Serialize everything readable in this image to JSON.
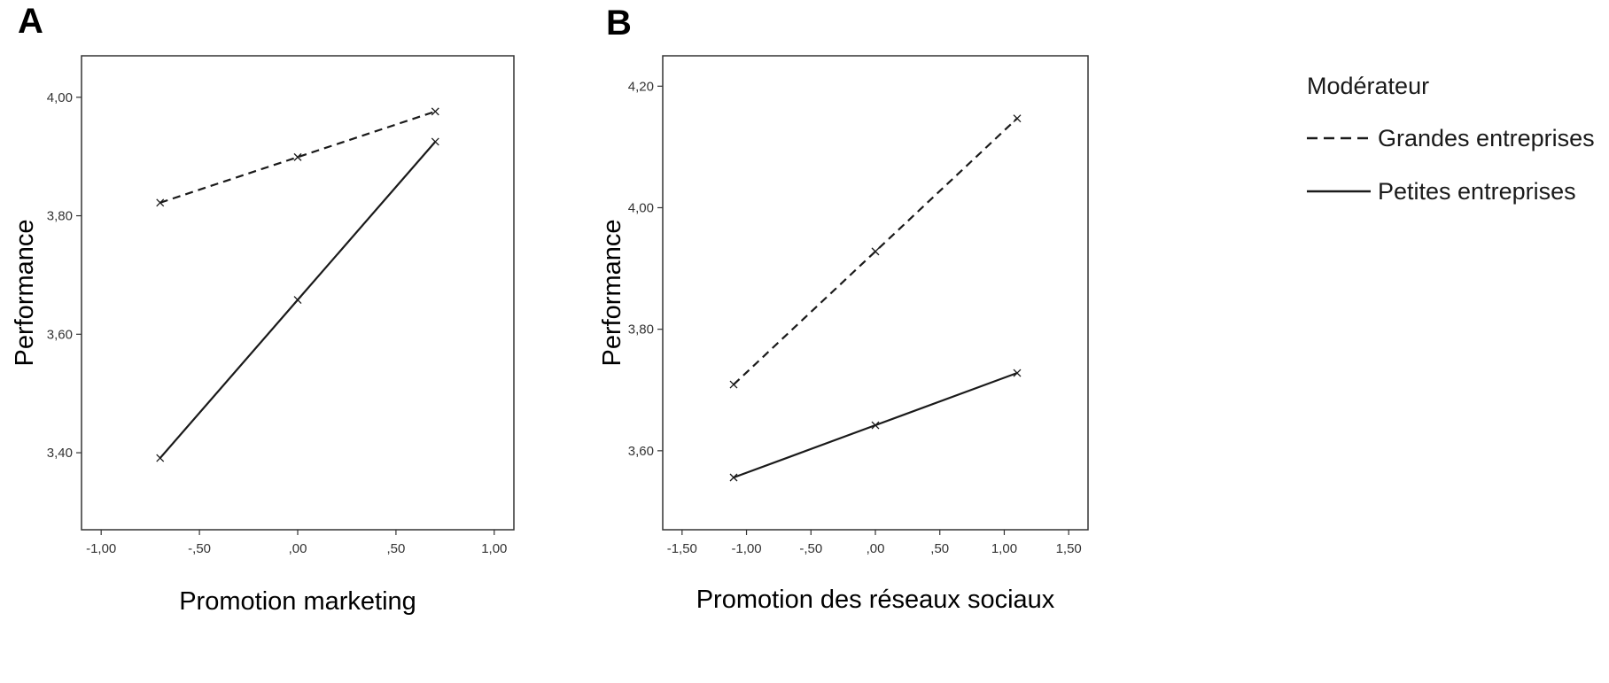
{
  "chart_data": [
    {
      "type": "line",
      "panel": "A",
      "xlabel": "Promotion marketing",
      "ylabel": "Performance",
      "xlim": [
        -1.1,
        1.1
      ],
      "ylim": [
        3.27,
        4.07
      ],
      "xticks": [
        -1.0,
        -0.5,
        0.0,
        0.5,
        1.0
      ],
      "xtick_labels": [
        "-1,00",
        "-,50",
        ",00",
        ",50",
        "1,00"
      ],
      "yticks": [
        3.4,
        3.6,
        3.8,
        4.0
      ],
      "ytick_labels": [
        "3,40",
        "3,60",
        "3,80",
        "4,00"
      ],
      "series": [
        {
          "name": "Grandes entreprises",
          "style": "dashed",
          "x": [
            -0.7,
            0.0,
            0.7
          ],
          "y": [
            3.822,
            3.899,
            3.976
          ]
        },
        {
          "name": "Petites entreprises",
          "style": "solid",
          "x": [
            -0.7,
            0.0,
            0.7
          ],
          "y": [
            3.391,
            3.658,
            3.925
          ]
        }
      ]
    },
    {
      "type": "line",
      "panel": "B",
      "xlabel": "Promotion des réseaux sociaux",
      "ylabel": "Performance",
      "xlim": [
        -1.65,
        1.65
      ],
      "ylim": [
        3.47,
        4.25
      ],
      "xticks": [
        -1.5,
        -1.0,
        -0.5,
        0.0,
        0.5,
        1.0,
        1.5
      ],
      "xtick_labels": [
        "-1,50",
        "-1,00",
        "-,50",
        ",00",
        ",50",
        "1,00",
        "1,50"
      ],
      "yticks": [
        3.6,
        3.8,
        4.0,
        4.2
      ],
      "ytick_labels": [
        "3,60",
        "3,80",
        "4,00",
        "4,20"
      ],
      "series": [
        {
          "name": "Grandes entreprises",
          "style": "dashed",
          "x": [
            -1.1,
            0.0,
            1.1
          ],
          "y": [
            3.709,
            3.928,
            4.147
          ]
        },
        {
          "name": "Petites entreprises",
          "style": "solid",
          "x": [
            -1.1,
            0.0,
            1.1
          ],
          "y": [
            3.556,
            3.642,
            3.728
          ]
        }
      ]
    }
  ],
  "panels": {
    "a_label": "A",
    "b_label": "B"
  },
  "legend": {
    "title": "Modérateur",
    "items": [
      {
        "label": "Grandes entreprises",
        "style": "dashed"
      },
      {
        "label": "Petites entreprises",
        "style": "solid"
      }
    ]
  }
}
